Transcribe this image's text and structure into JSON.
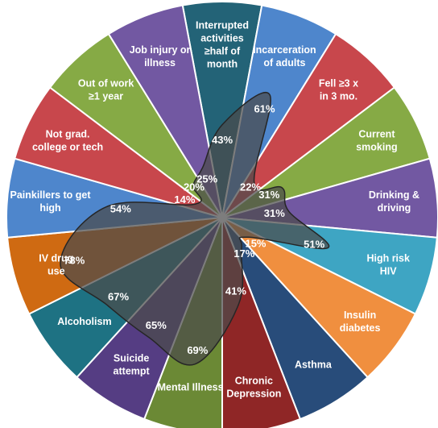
{
  "chart_data": {
    "type": "pie",
    "title": "",
    "categories": [
      "Interrupted activities ≥half of month",
      "Incarceration of adults",
      "Fell ≥3 x in 3 mo.",
      "Current smoking",
      "Drinking & driving",
      "High risk HIV",
      "Insulin diabetes",
      "Asthma",
      "Chronic Depression",
      "Mental Illness",
      "Suicide attempt",
      "Alcoholism",
      "IV drug use",
      "Painkillers to get high",
      "Not grad. college or tech",
      "Out of work ≥1 year",
      "Job injury or illness"
    ],
    "values": [
      43,
      61,
      22,
      31,
      31,
      51,
      15,
      17,
      41,
      69,
      65,
      67,
      78,
      54,
      14,
      20,
      25
    ],
    "label_lines": [
      [
        "Interrupted",
        "activities",
        "≥half of",
        "month"
      ],
      [
        "Incarceration",
        "of adults"
      ],
      [
        "Fell ≥3 x",
        "in 3 mo."
      ],
      [
        "Current",
        "smoking"
      ],
      [
        "Drinking &",
        "driving"
      ],
      [
        "High risk",
        "HIV"
      ],
      [
        "Insulin",
        "diabetes"
      ],
      [
        "Asthma"
      ],
      [
        "Chronic",
        "Depression"
      ],
      [
        "Mental Illness"
      ],
      [
        "Suicide",
        "attempt"
      ],
      [
        "Alcoholism"
      ],
      [
        "IV drug",
        "use"
      ],
      [
        "Painkillers to get",
        "high"
      ],
      [
        "Not grad.",
        "college or tech"
      ],
      [
        "Out of work",
        "≥1 year"
      ],
      [
        "Job injury or",
        "illness"
      ]
    ],
    "value_labels": [
      "43%",
      "61%",
      "22%",
      "31%",
      "31%",
      "51%",
      "15%",
      "17%",
      "41%",
      "69%",
      "65%",
      "67%",
      "78%",
      "54%",
      "14%",
      "20%",
      "25%"
    ],
    "colors": [
      "#236377",
      "#4e86cc",
      "#c8474c",
      "#86aa45",
      "#7258a2",
      "#3ea5c3",
      "#f08f3f",
      "#284c7a",
      "#8f2626",
      "#6b8935",
      "#553d83",
      "#1e7283",
      "#cf6a12",
      "#4e86cc",
      "#c8474c",
      "#86aa45",
      "#7258a2"
    ],
    "overlay": {
      "type": "radar-area",
      "scale_max": 100,
      "fill": "#4b4b4b",
      "fill_opacity": 0.72,
      "stroke": "#262626"
    },
    "legend": "none",
    "grid": false
  }
}
